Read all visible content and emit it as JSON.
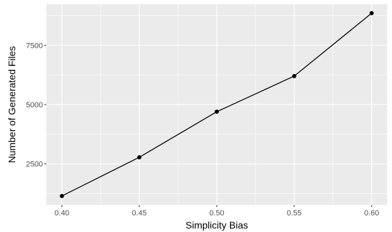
{
  "chart_data": {
    "type": "line",
    "title": "",
    "xlabel": "Simplicity Bias",
    "ylabel": "Number of Generated Files",
    "x": [
      0.4,
      0.45,
      0.5,
      0.55,
      0.6
    ],
    "series": [
      {
        "values": [
          1150,
          2780,
          4700,
          6200,
          8850
        ]
      }
    ],
    "xlim": [
      0.39,
      0.61
    ],
    "ylim": [
      770,
      9230
    ],
    "x_ticks": [
      0.4,
      0.45,
      0.5,
      0.55,
      0.6
    ],
    "x_tick_labels": [
      "0.40",
      "0.45",
      "0.50",
      "0.55",
      "0.60"
    ],
    "y_ticks": [
      2500,
      5000,
      7500
    ],
    "y_tick_labels": [
      "2500",
      "5000",
      "7500"
    ],
    "grid": true,
    "panel_background": "#ebebeb",
    "grid_color": "#ffffff",
    "line_color": "#000000",
    "point_color": "#000000"
  }
}
